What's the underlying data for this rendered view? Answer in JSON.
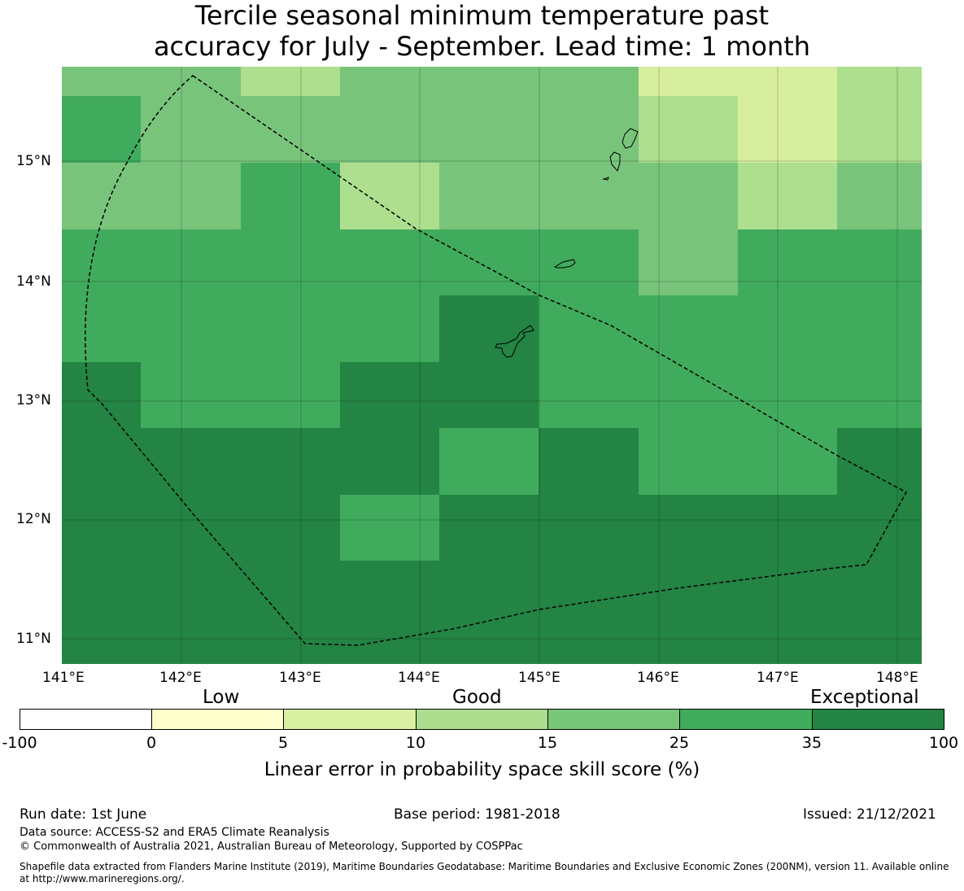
{
  "title": {
    "line1": "Tercile seasonal minimum temperature past",
    "line2": "accuracy for July - September. Lead time: 1 month"
  },
  "map": {
    "lat_ticks": [
      "15°N",
      "14°N",
      "13°N",
      "12°N",
      "11°N"
    ],
    "lon_ticks": [
      "141°E",
      "142°E",
      "143°E",
      "144°E",
      "145°E",
      "146°E",
      "147°E",
      "148°E"
    ],
    "grid_colors": {
      "pale_yellow": "#d8ee9f",
      "light_green": "#addf8e",
      "mid_green": "#78c47b",
      "green": "#41ab5d",
      "dark_green": "#238443"
    }
  },
  "legend": {
    "category_low": "Low",
    "category_good": "Good",
    "category_exceptional": "Exceptional",
    "tick_labels": [
      "-100",
      "0",
      "5",
      "10",
      "15",
      "25",
      "35",
      "100"
    ],
    "colors": [
      "#ffffff",
      "#ffffcc",
      "#d9f0a3",
      "#addd8e",
      "#78c679",
      "#41ab5d",
      "#238443"
    ],
    "title": "Linear error in probability space skill score (%)"
  },
  "footer": {
    "run_date": "Run date: 1st June",
    "base_period": "Base period: 1981-2018",
    "issued": "Issued: 21/12/2021",
    "data_source": "Data source: ACCESS-S2 and ERA5 Climate Reanalysis",
    "copyright": "© Commonwealth of Australia 2021, Australian Bureau of Meteorology, Supported by COSPPac",
    "shapefile_line1": "Shapefile data extracted from Flanders Marine Institute (2019), Maritime Boundaries Geodatabase: Maritime Boundaries and Exclusive Economic Zones (200NM), version 11. Available online",
    "shapefile_line2": "at http://www.marineregions.org/."
  }
}
